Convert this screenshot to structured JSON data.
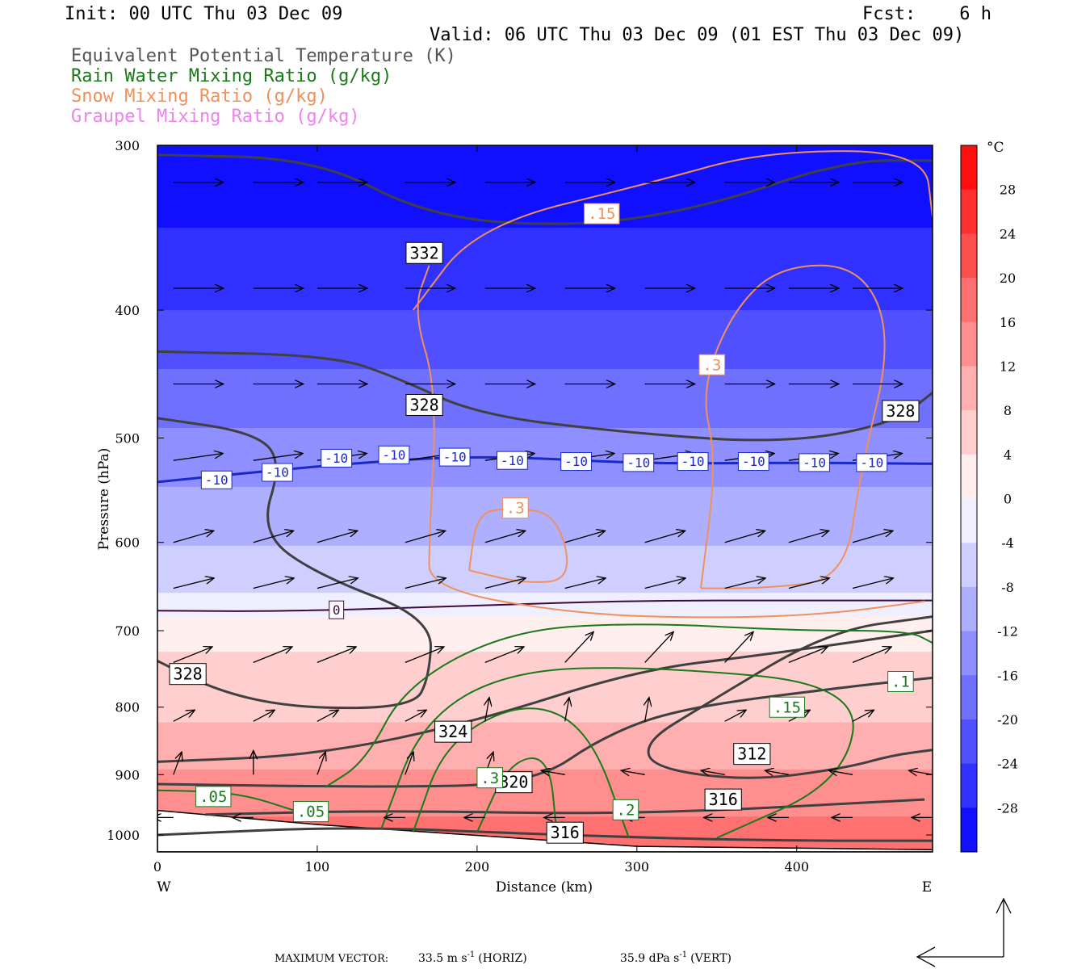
{
  "header": {
    "init": "Init: 00 UTC Thu 03 Dec 09",
    "fcst_label": "Fcst:",
    "fcst_value": "6 h",
    "valid": "Valid: 06 UTC Thu 03 Dec 09 (01 EST Thu 03 Dec 09)"
  },
  "legend": [
    {
      "text": "Equivalent Potential Temperature (K)",
      "color": "#555555"
    },
    {
      "text": "Rain Water Mixing Ratio (g/kg)",
      "color": "#1a7a1a"
    },
    {
      "text": "Snow Mixing Ratio (g/kg)",
      "color": "#f0905a"
    },
    {
      "text": "Graupel Mixing Ratio (g/kg)",
      "color": "#ee82ee"
    }
  ],
  "footer": {
    "max_vector_label": "MAXIMUM VECTOR:",
    "horiz_value": "33.5 m s",
    "horiz_exp": "-1",
    "horiz_unit": "(HORIZ)",
    "vert_value": "35.9 dPa s",
    "vert_exp": "-1",
    "vert_unit": "(VERT)"
  },
  "chart_data": {
    "type": "heatmap",
    "title": "",
    "xlabel": "Distance (km)",
    "ylabel": "Pressure (hPa)",
    "xlim": [
      0,
      485
    ],
    "ylim": [
      1030,
      300
    ],
    "y_log": true,
    "x_ticks": [
      0,
      100,
      200,
      300,
      400
    ],
    "y_ticks": [
      300,
      400,
      500,
      600,
      700,
      800,
      900,
      1000
    ],
    "x_end_labels": {
      "left": "W",
      "right": "E"
    },
    "colorbar": {
      "unit": "°C",
      "ticks": [
        28,
        24,
        20,
        16,
        12,
        8,
        4,
        0,
        -4,
        -8,
        -12,
        -16,
        -20,
        -24,
        -28
      ],
      "min": -32,
      "max": 32,
      "step": 4
    },
    "temperature_levels": [
      {
        "p": 300,
        "t": -30
      },
      {
        "p": 400,
        "t": -22
      },
      {
        "p": 500,
        "t": -13
      },
      {
        "p": 600,
        "t": -6
      },
      {
        "p": 680,
        "t": 0
      },
      {
        "p": 760,
        "t": 4
      },
      {
        "p": 850,
        "t": 7
      },
      {
        "p": 940,
        "t": 13
      },
      {
        "p": 1000,
        "t": 16
      }
    ],
    "terrain_pressure": [
      {
        "x": 0,
        "p": 958
      },
      {
        "x": 100,
        "p": 982
      },
      {
        "x": 300,
        "p": 1020
      },
      {
        "x": 485,
        "p": 1026
      }
    ],
    "temperature_contours": [
      {
        "label": "-10",
        "color": "#1a28c8",
        "width": 3,
        "points": [
          [
            0,
            540
          ],
          [
            100,
            525
          ],
          [
            200,
            515
          ],
          [
            300,
            523
          ],
          [
            400,
            522
          ],
          [
            485,
            523
          ]
        ],
        "label_points": [
          [
            37,
            538
          ],
          [
            75,
            531
          ],
          [
            112,
            518
          ],
          [
            148,
            515
          ],
          [
            186,
            517
          ],
          [
            222,
            520
          ],
          [
            262,
            521
          ],
          [
            301,
            522
          ],
          [
            335,
            521
          ],
          [
            373,
            521
          ],
          [
            411,
            522
          ],
          [
            447,
            522
          ]
        ]
      },
      {
        "label": "0",
        "color": "#3c0a3c",
        "width": 2,
        "points": [
          [
            0,
            676
          ],
          [
            80,
            677
          ],
          [
            200,
            670
          ],
          [
            300,
            664
          ],
          [
            400,
            664
          ],
          [
            485,
            664
          ]
        ],
        "label_points": [
          [
            112,
            675
          ]
        ]
      }
    ],
    "theta_e_contours": [
      {
        "label": "332",
        "points": [
          [
            0,
            305
          ],
          [
            100,
            307
          ],
          [
            170,
            340
          ],
          [
            260,
            346
          ],
          [
            340,
            335
          ],
          [
            430,
            308
          ],
          [
            485,
            308
          ]
        ],
        "label_points": [
          [
            167,
            362
          ]
        ]
      },
      {
        "label": "328",
        "points": [
          [
            0,
            430
          ],
          [
            110,
            433
          ],
          [
            150,
            450
          ],
          [
            200,
            480
          ],
          [
            290,
            495
          ],
          [
            390,
            505
          ],
          [
            460,
            488
          ],
          [
            485,
            462
          ]
        ],
        "label_points": [
          [
            167,
            472
          ],
          [
            465,
            477
          ]
        ]
      },
      {
        "label": "328",
        "points": [
          [
            0,
            483
          ],
          [
            60,
            495
          ],
          [
            78,
            520
          ],
          [
            64,
            590
          ],
          [
            100,
            635
          ],
          [
            172,
            685
          ],
          [
            170,
            760
          ],
          [
            160,
            800
          ],
          [
            90,
            802
          ],
          [
            40,
            780
          ],
          [
            0,
            738
          ]
        ],
        "label_points": [
          [
            19,
            755
          ]
        ]
      },
      {
        "label": "324",
        "points": [
          [
            0,
            880
          ],
          [
            100,
            870
          ],
          [
            200,
            820
          ],
          [
            300,
            750
          ],
          [
            380,
            730
          ],
          [
            485,
            700
          ]
        ],
        "label_points": [
          [
            185,
            835
          ]
        ]
      },
      {
        "label": "320",
        "points": [
          [
            0,
            915
          ],
          [
            140,
            920
          ],
          [
            235,
            915
          ],
          [
            280,
            840
          ],
          [
            330,
            800
          ],
          [
            440,
            770
          ],
          [
            485,
            760
          ]
        ],
        "label_points": [
          [
            223,
            912
          ]
        ]
      },
      {
        "label": "312",
        "points": [
          [
            485,
            683
          ],
          [
            420,
            700
          ],
          [
            340,
            800
          ],
          [
            305,
            850
          ],
          [
            310,
            890
          ],
          [
            370,
            910
          ],
          [
            430,
            890
          ],
          [
            460,
            870
          ],
          [
            485,
            862
          ]
        ],
        "label_points": [
          [
            372,
            868
          ]
        ]
      },
      {
        "label": "316",
        "points": [
          [
            30,
            965
          ],
          [
            140,
            958
          ],
          [
            300,
            965
          ],
          [
            480,
            940
          ]
        ],
        "label_points": [
          [
            354,
            940
          ]
        ]
      },
      {
        "label": "316",
        "points": [
          [
            0,
            1000
          ],
          [
            120,
            985
          ],
          [
            250,
            1000
          ],
          [
            380,
            1010
          ],
          [
            485,
            1010
          ]
        ],
        "label_points": [
          [
            255,
            996
          ]
        ]
      }
    ],
    "snow_contours": [
      {
        "label": ".15",
        "points": [
          [
            160,
            400
          ],
          [
            200,
            345
          ],
          [
            310,
            320
          ],
          [
            380,
            303
          ],
          [
            480,
            303
          ],
          [
            485,
            340
          ]
        ],
        "label_points": [
          [
            278,
            338
          ]
        ]
      },
      {
        "label": ".3",
        "points": [
          [
            170,
            370
          ],
          [
            160,
            400
          ],
          [
            175,
            460
          ],
          [
            170,
            600
          ],
          [
            170,
            650
          ],
          [
            260,
            680
          ],
          [
            350,
            685
          ],
          [
            420,
            680
          ],
          [
            480,
            665
          ]
        ],
        "label_points": []
      },
      {
        "label": ".3",
        "points": [
          [
            340,
            650
          ],
          [
            350,
            520
          ],
          [
            340,
            460
          ],
          [
            360,
            400
          ],
          [
            390,
            370
          ],
          [
            440,
            370
          ],
          [
            460,
            420
          ],
          [
            440,
            530
          ],
          [
            430,
            640
          ],
          [
            380,
            650
          ],
          [
            340,
            650
          ]
        ],
        "label_points": [
          [
            347,
            440
          ]
        ]
      },
      {
        "label": ".3",
        "points": [
          [
            195,
            630
          ],
          [
            200,
            570
          ],
          [
            220,
            565
          ],
          [
            250,
            570
          ],
          [
            260,
            640
          ],
          [
            230,
            645
          ],
          [
            195,
            630
          ]
        ],
        "label_points": [
          [
            224,
            565
          ]
        ]
      }
    ],
    "rain_contours": [
      {
        "label": ".05",
        "points": [
          [
            0,
            925
          ],
          [
            50,
            928
          ],
          [
            90,
            962
          ],
          [
            100,
            968
          ]
        ],
        "label_points": [
          [
            35,
            935
          ],
          [
            96,
            960
          ]
        ]
      },
      {
        "label": ".1",
        "points": [
          [
            105,
            920
          ],
          [
            130,
            880
          ],
          [
            155,
            770
          ],
          [
            220,
            700
          ],
          [
            300,
            690
          ],
          [
            400,
            700
          ],
          [
            470,
            700
          ],
          [
            485,
            715
          ]
        ],
        "label_points": [
          [
            465,
            765
          ]
        ]
      },
      {
        "label": ".15",
        "points": [
          [
            140,
            990
          ],
          [
            165,
            820
          ],
          [
            220,
            750
          ],
          [
            310,
            745
          ],
          [
            440,
            770
          ],
          [
            430,
            910
          ],
          [
            350,
            1005
          ]
        ],
        "label_points": [
          [
            394,
            800
          ]
        ]
      },
      {
        "label": ".2",
        "points": [
          [
            160,
            995
          ],
          [
            180,
            850
          ],
          [
            230,
            790
          ],
          [
            270,
            830
          ],
          [
            295,
            1005
          ]
        ],
        "label_points": [
          [
            293,
            957
          ]
        ]
      },
      {
        "label": ".3",
        "points": [
          [
            200,
            995
          ],
          [
            220,
            880
          ],
          [
            245,
            870
          ],
          [
            250,
            1000
          ]
        ],
        "label_points": [
          [
            208,
            905
          ]
        ]
      }
    ],
    "wind_vectors": {
      "columns": [
        10,
        60,
        100,
        155,
        205,
        255,
        305,
        355,
        395,
        435,
        485
      ],
      "rows": [
        320,
        385,
        455,
        520,
        600,
        650,
        740,
        820,
        900,
        970
      ]
    },
    "vector_legend_arrows": [
      "horizontal",
      "vertical"
    ]
  }
}
